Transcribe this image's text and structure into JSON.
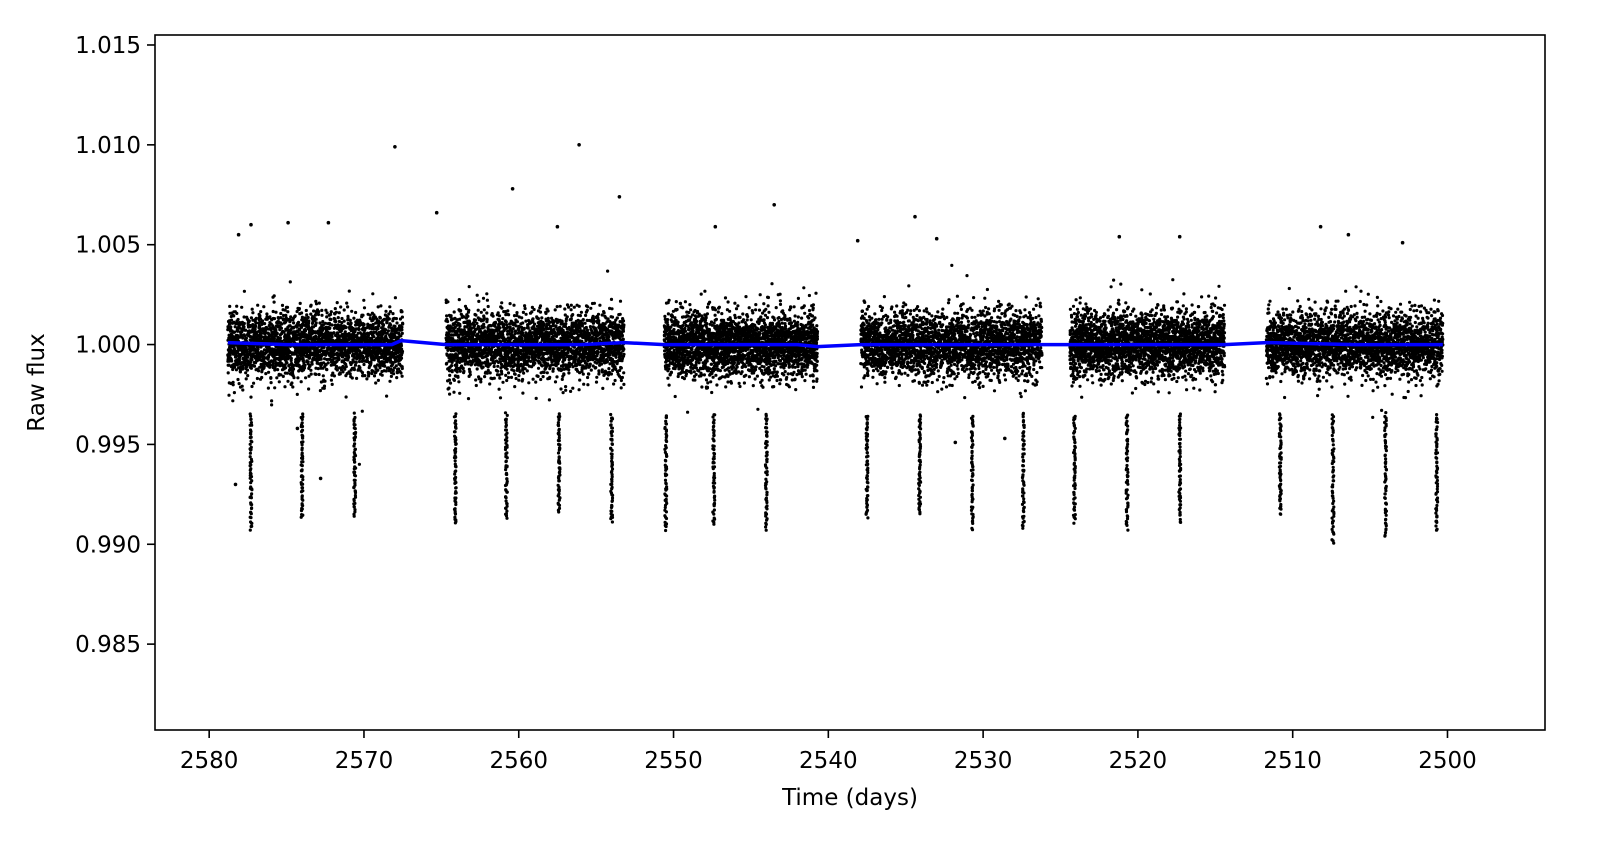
{
  "chart_data": {
    "type": "scatter",
    "title": "",
    "xlabel": "Time (days)",
    "ylabel": "Raw flux",
    "xlim": [
      2583.5,
      2493.7
    ],
    "ylim": [
      0.9807,
      1.0155
    ],
    "x_inverted": true,
    "grid": false,
    "legend": "none",
    "x_ticks": [
      2580,
      2570,
      2560,
      2550,
      2540,
      2530,
      2520,
      2510,
      2500
    ],
    "x_tick_labels": [
      "2580",
      "2570",
      "2560",
      "2550",
      "2540",
      "2530",
      "2520",
      "2510",
      "2500"
    ],
    "y_ticks": [
      0.985,
      0.99,
      0.995,
      1.0,
      1.005,
      1.01,
      1.015
    ],
    "y_tick_labels": [
      "0.985",
      "0.990",
      "0.995",
      "1.000",
      "1.005",
      "1.010",
      "1.015"
    ],
    "colors": {
      "points": "#000000",
      "trend": "#0000ff",
      "axes": "#000000",
      "background": "#ffffff"
    },
    "series": [
      {
        "kind": "points",
        "segments": [
          {
            "x_range": [
              2578.8,
              2567.5
            ],
            "flux_center": 1.0,
            "flux_scatter": 0.0013
          },
          {
            "x_range": [
              2564.7,
              2553.2
            ],
            "flux_center": 1.0,
            "flux_scatter": 0.0013
          },
          {
            "x_range": [
              2550.6,
              2540.7
            ],
            "flux_center": 1.0,
            "flux_scatter": 0.0013
          },
          {
            "x_range": [
              2537.9,
              2526.2
            ],
            "flux_center": 1.0,
            "flux_scatter": 0.0013
          },
          {
            "x_range": [
              2524.4,
              2514.4
            ],
            "flux_center": 1.0,
            "flux_scatter": 0.0013
          },
          {
            "x_range": [
              2511.7,
              2500.3
            ],
            "flux_center": 1.0,
            "flux_scatter": 0.0013
          }
        ],
        "transit_times": [
          2577.3,
          2574.0,
          2570.6,
          2564.1,
          2560.8,
          2557.4,
          2554.0,
          2550.5,
          2547.4,
          2544.0,
          2537.5,
          2534.1,
          2530.7,
          2527.4,
          2524.1,
          2520.7,
          2517.3,
          2510.8,
          2507.4,
          2504.0,
          2500.7
        ],
        "transit_min_flux": [
          0.9907,
          0.9913,
          0.9915,
          0.991,
          0.9913,
          0.9917,
          0.9911,
          0.9907,
          0.991,
          0.9908,
          0.9914,
          0.9915,
          0.9908,
          0.9908,
          0.9911,
          0.9908,
          0.9911,
          0.9915,
          0.9901,
          0.9904,
          0.9907
        ],
        "outliers": [
          {
            "x": 2568.0,
            "y": 1.0099
          },
          {
            "x": 2556.1,
            "y": 1.01
          },
          {
            "x": 2560.4,
            "y": 1.0078
          },
          {
            "x": 2553.5,
            "y": 1.0074
          },
          {
            "x": 2543.5,
            "y": 1.007
          },
          {
            "x": 2565.3,
            "y": 1.0066
          },
          {
            "x": 2534.4,
            "y": 1.0064
          },
          {
            "x": 2574.9,
            "y": 1.0061
          },
          {
            "x": 2572.3,
            "y": 1.0061
          },
          {
            "x": 2577.3,
            "y": 1.006
          },
          {
            "x": 2557.5,
            "y": 1.0059
          },
          {
            "x": 2547.3,
            "y": 1.0059
          },
          {
            "x": 2508.2,
            "y": 1.0059
          },
          {
            "x": 2506.4,
            "y": 1.0055
          },
          {
            "x": 2578.1,
            "y": 1.0055
          },
          {
            "x": 2521.2,
            "y": 1.0054
          },
          {
            "x": 2533.0,
            "y": 1.0053
          },
          {
            "x": 2517.3,
            "y": 1.0054
          },
          {
            "x": 2538.1,
            "y": 1.0052
          },
          {
            "x": 2502.9,
            "y": 1.0051
          },
          {
            "x": 2574.3,
            "y": 0.9958
          },
          {
            "x": 2572.8,
            "y": 0.9933
          },
          {
            "x": 2578.3,
            "y": 0.993
          },
          {
            "x": 2531.8,
            "y": 0.9951
          },
          {
            "x": 2528.6,
            "y": 0.9953
          }
        ]
      },
      {
        "kind": "trend",
        "x": [
          2578.8,
          2575.0,
          2571.0,
          2568.2,
          2567.6,
          2564.7,
          2560.0,
          2556.0,
          2553.2,
          2550.6,
          2546.0,
          2542.0,
          2540.7,
          2537.9,
          2532.0,
          2526.2,
          2524.4,
          2519.0,
          2514.4,
          2511.7,
          2506.0,
          2500.3
        ],
        "y": [
          1.0001,
          1.0,
          1.0,
          1.0,
          1.0002,
          1.0,
          1.0,
          1.0,
          1.0001,
          1.0,
          1.0,
          1.0,
          0.9999,
          1.0,
          1.0,
          1.0,
          1.0,
          1.0,
          1.0,
          1.0001,
          1.0,
          1.0
        ]
      }
    ]
  }
}
